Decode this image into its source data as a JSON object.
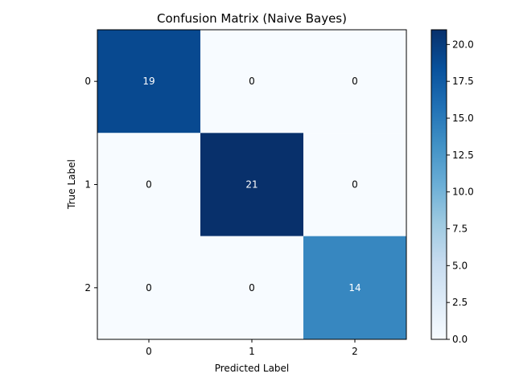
{
  "chart_data": {
    "type": "heatmap",
    "title": "Confusion Matrix (Naive Bayes)",
    "xlabel": "Predicted Label",
    "ylabel": "True Label",
    "x_categories": [
      "0",
      "1",
      "2"
    ],
    "y_categories": [
      "0",
      "1",
      "2"
    ],
    "values": [
      [
        19,
        0,
        0
      ],
      [
        0,
        21,
        0
      ],
      [
        0,
        0,
        14
      ]
    ],
    "colormap": "Blues",
    "color_low": "#f7fbff",
    "color_high": "#08306b",
    "annotation_color_dark_cell": "#ffffff",
    "annotation_color_light_cell": "#000000",
    "colorbar": {
      "range": [
        0,
        21
      ],
      "ticks": [
        0.0,
        2.5,
        5.0,
        7.5,
        10.0,
        12.5,
        15.0,
        17.5,
        20.0
      ],
      "tick_labels": [
        "0.0",
        "2.5",
        "5.0",
        "7.5",
        "10.0",
        "12.5",
        "15.0",
        "17.5",
        "20.0"
      ]
    },
    "grid": false
  }
}
